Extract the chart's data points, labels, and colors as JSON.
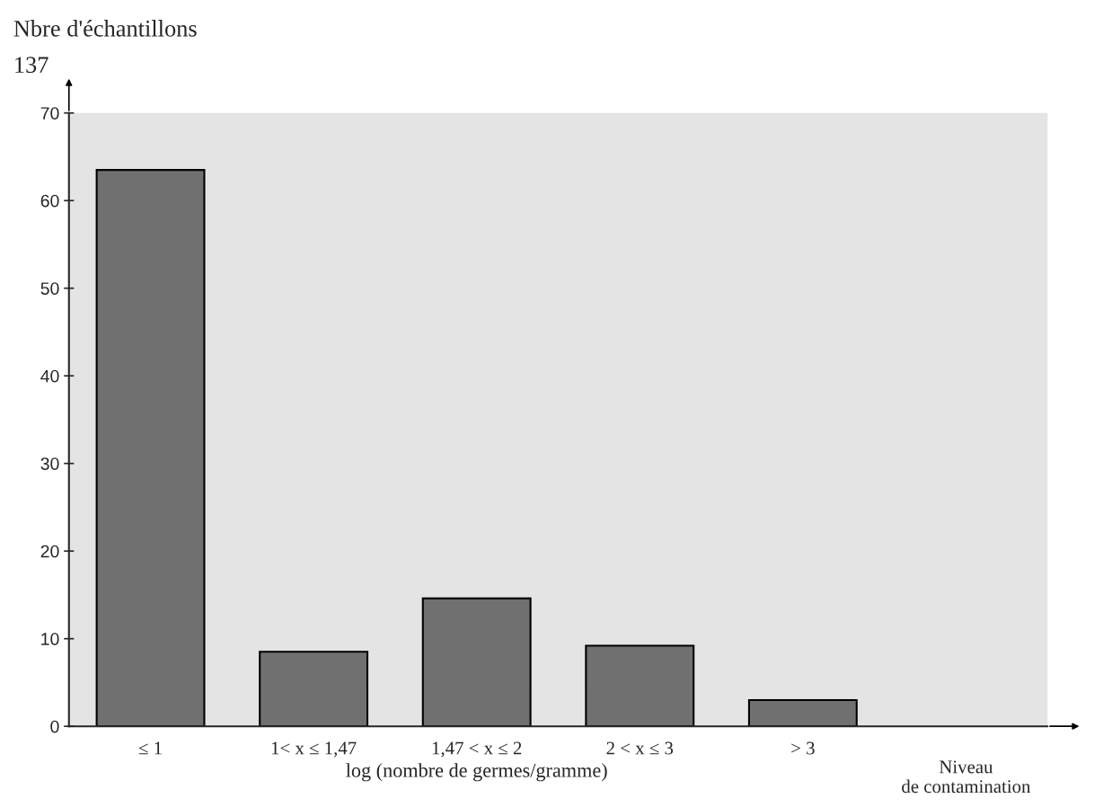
{
  "chart_data": {
    "type": "bar",
    "categories": [
      "≤ 1",
      "1< x ≤ 1,47",
      "1,47 < x ≤ 2",
      "2 < x ≤ 3",
      "> 3"
    ],
    "values": [
      63.5,
      8.5,
      14.6,
      9.2,
      3
    ],
    "color": "#707070",
    "xlabel": "log (nombre de germes/gramme)",
    "ylabel": "Nbre d'échantillons",
    "annotations": [
      "137",
      "Niveau\nde contamination"
    ],
    "ylim": [
      0,
      70
    ],
    "yticks": [
      0,
      10,
      20,
      30,
      40,
      50,
      60,
      70
    ],
    "grid": false
  }
}
